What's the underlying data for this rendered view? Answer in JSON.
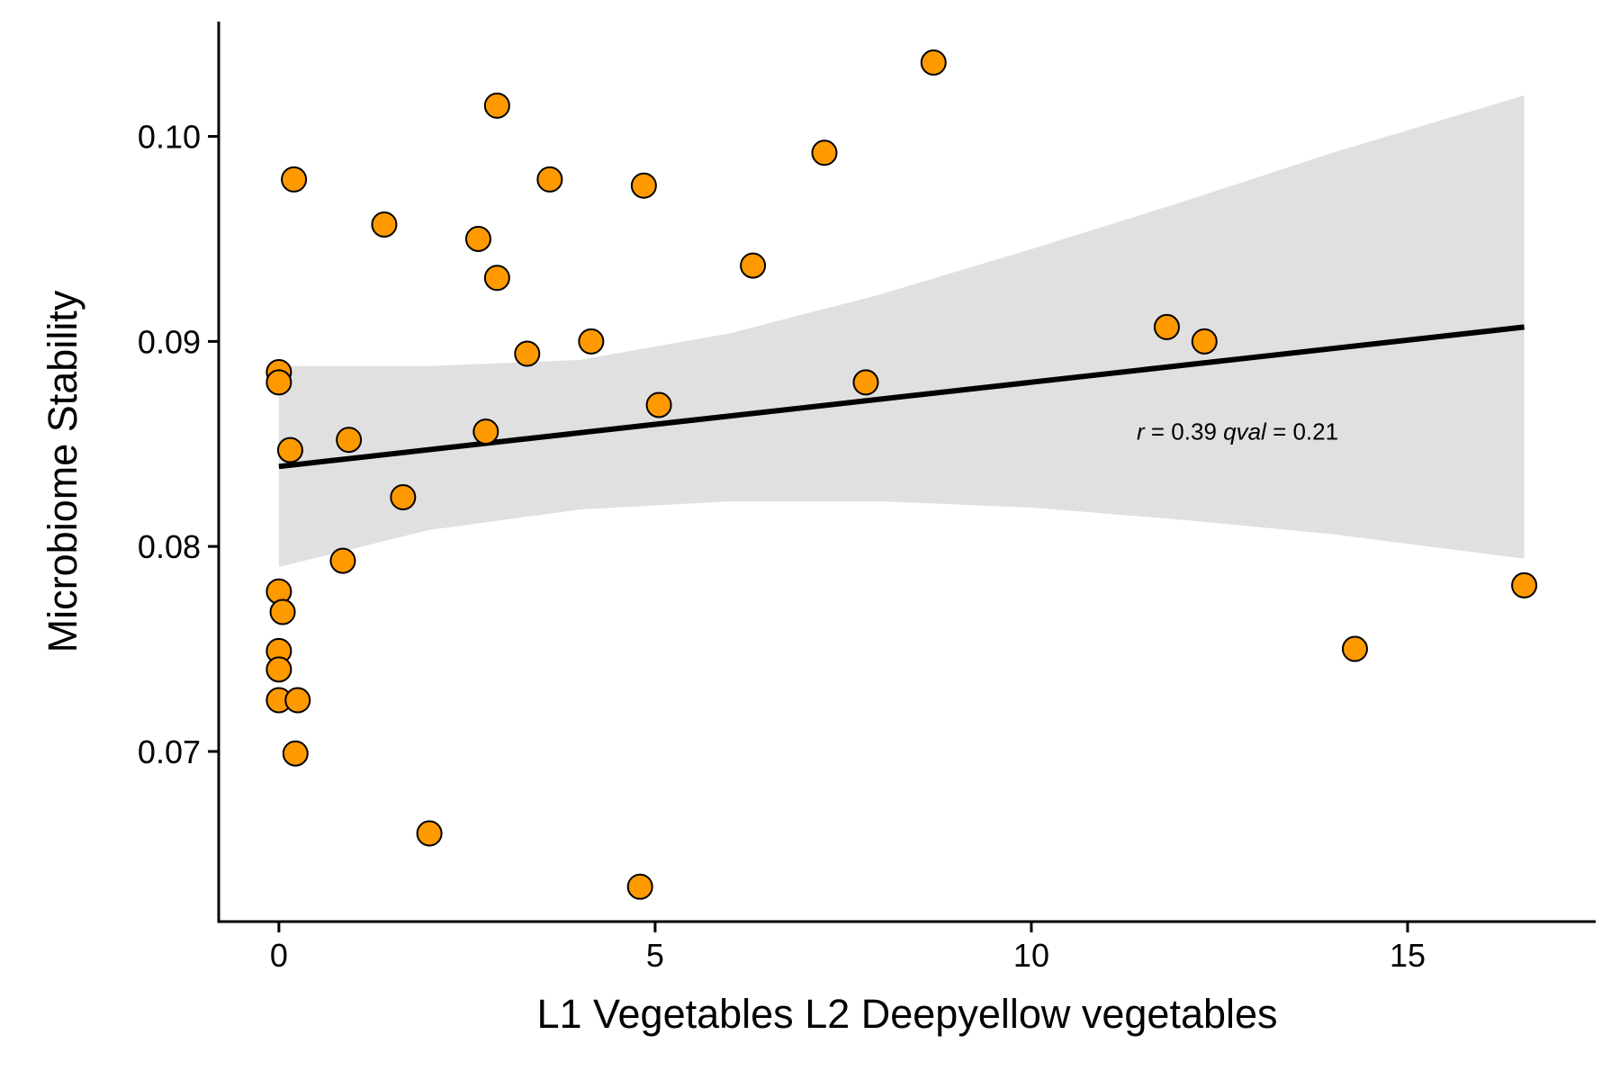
{
  "chart_data": {
    "type": "scatter",
    "title": "",
    "xlabel": "L1 Vegetables  L2 Deepyellow vegetables",
    "ylabel": "Microbiome Stability",
    "xlim": [
      -0.8,
      17.5
    ],
    "ylim": [
      0.0617,
      0.1056
    ],
    "x_ticks": [
      0,
      5,
      10,
      15
    ],
    "x_tick_labels": [
      "0",
      "5",
      "10",
      "15"
    ],
    "y_ticks": [
      0.07,
      0.08,
      0.09,
      0.1
    ],
    "y_tick_labels": [
      "0.07",
      "0.08",
      "0.09",
      "0.10"
    ],
    "grid": false,
    "point_color": "#FF9900",
    "point_edge_color": "#000000",
    "band_color": "#E0E0E0",
    "line_color": "#000000",
    "points": [
      {
        "x": 0.0,
        "y": 0.0885
      },
      {
        "x": 0.0,
        "y": 0.088
      },
      {
        "x": 0.15,
        "y": 0.0847
      },
      {
        "x": 0.2,
        "y": 0.0979
      },
      {
        "x": 0.0,
        "y": 0.0778
      },
      {
        "x": 0.05,
        "y": 0.0768
      },
      {
        "x": 0.0,
        "y": 0.0749
      },
      {
        "x": 0.0,
        "y": 0.074
      },
      {
        "x": 0.0,
        "y": 0.0725
      },
      {
        "x": 0.25,
        "y": 0.0725
      },
      {
        "x": 0.22,
        "y": 0.0699
      },
      {
        "x": 0.85,
        "y": 0.0793
      },
      {
        "x": 0.93,
        "y": 0.0852
      },
      {
        "x": 1.4,
        "y": 0.0957
      },
      {
        "x": 1.65,
        "y": 0.0824
      },
      {
        "x": 2.0,
        "y": 0.066
      },
      {
        "x": 2.65,
        "y": 0.095
      },
      {
        "x": 2.75,
        "y": 0.0856
      },
      {
        "x": 2.9,
        "y": 0.1015
      },
      {
        "x": 2.9,
        "y": 0.0931
      },
      {
        "x": 3.3,
        "y": 0.0894
      },
      {
        "x": 3.6,
        "y": 0.0979
      },
      {
        "x": 4.15,
        "y": 0.09
      },
      {
        "x": 4.8,
        "y": 0.0634
      },
      {
        "x": 4.85,
        "y": 0.0976
      },
      {
        "x": 5.05,
        "y": 0.0869
      },
      {
        "x": 6.3,
        "y": 0.0937
      },
      {
        "x": 7.25,
        "y": 0.0992
      },
      {
        "x": 7.8,
        "y": 0.088
      },
      {
        "x": 8.7,
        "y": 0.1036
      },
      {
        "x": 11.8,
        "y": 0.0907
      },
      {
        "x": 12.3,
        "y": 0.09
      },
      {
        "x": 14.3,
        "y": 0.075
      },
      {
        "x": 16.55,
        "y": 0.0781
      }
    ],
    "fit_line": {
      "x": [
        0,
        16.55
      ],
      "y": [
        0.0839,
        0.0907
      ]
    },
    "confidence_band": {
      "x": [
        0,
        2,
        4,
        6,
        8,
        10,
        12,
        14,
        16.55
      ],
      "upper": [
        0.0888,
        0.0888,
        0.0891,
        0.0904,
        0.0923,
        0.0945,
        0.0968,
        0.0992,
        0.102
      ],
      "lower": [
        0.079,
        0.0808,
        0.0818,
        0.0822,
        0.0822,
        0.0819,
        0.0813,
        0.0806,
        0.0794
      ]
    },
    "annotation": {
      "r_symbol": "r",
      "r_text": " = 0.39 ",
      "q_symbol": "qval",
      "q_text": " = 0.21",
      "x": 11.4,
      "y": 0.0852
    }
  }
}
